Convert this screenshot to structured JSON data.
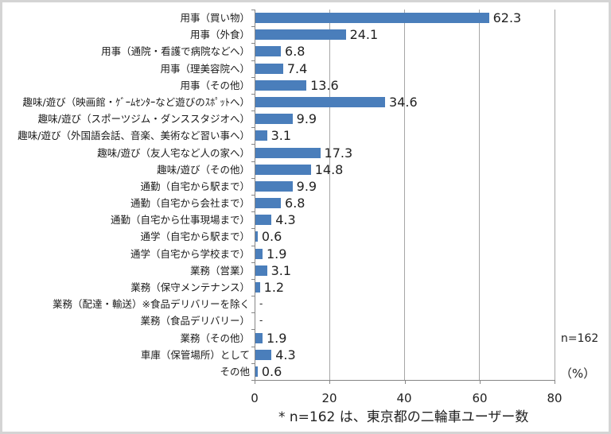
{
  "chart_data": {
    "type": "bar",
    "orientation": "horizontal",
    "title": "",
    "xlabel": "(%)",
    "ylabel": "",
    "xlim": [
      0,
      80
    ],
    "xticks": [
      0,
      20,
      40,
      60,
      80
    ],
    "grid": true,
    "legend": null,
    "sample_note": "n=162",
    "footnote": "* n=162 は、東京都の二輪車ユーザー数",
    "bar_color": "#4a7ebb",
    "categories": [
      "用事（買い物）",
      "用事（外食）",
      "用事（通院・看護で病院などへ）",
      "用事（理美容院へ）",
      "用事（その他）",
      "趣味/遊び（映画館・ｹﾞｰﾑｾﾝﾀｰなど遊びのｽﾎﾟｯﾄへ）",
      "趣味/遊び（スポーツジム・ダンススタジオへ）",
      "趣味/遊び（外国語会話、音楽、美術など習い事へ）",
      "趣味/遊び（友人宅など人の家へ）",
      "趣味/遊び（その他）",
      "通勤（自宅から駅まで）",
      "通勤（自宅から会社まで）",
      "通勤（自宅から仕事現場まで）",
      "通学（自宅から駅まで）",
      "通学（自宅から学校まで）",
      "業務（営業）",
      "業務（保守メンテナンス）",
      "業務（配達・輸送）※食品デリバリーを除く",
      "業務（食品デリバリー）",
      "業務（その他）",
      "車庫（保管場所）として",
      "その他"
    ],
    "values": [
      62.3,
      24.1,
      6.8,
      7.4,
      13.6,
      34.6,
      9.9,
      3.1,
      17.3,
      14.8,
      9.9,
      6.8,
      4.3,
      0.6,
      1.9,
      3.1,
      1.2,
      null,
      null,
      1.9,
      4.3,
      0.6
    ],
    "value_labels": [
      "62.3",
      "24.1",
      "6.8",
      "7.4",
      "13.6",
      "34.6",
      "9.9",
      "3.1",
      "17.3",
      "14.8",
      "9.9",
      "6.8",
      "4.3",
      "0.6",
      "1.9",
      "3.1",
      "1.2",
      "-",
      "-",
      "1.9",
      "4.3",
      "0.6"
    ]
  },
  "axis": {
    "xtick_labels": [
      "0",
      "20",
      "40",
      "60",
      "80"
    ],
    "unit_label": "（%）",
    "n_label": "n=162"
  },
  "footnote": "* n=162 は、東京都の二輪車ユーザー数"
}
